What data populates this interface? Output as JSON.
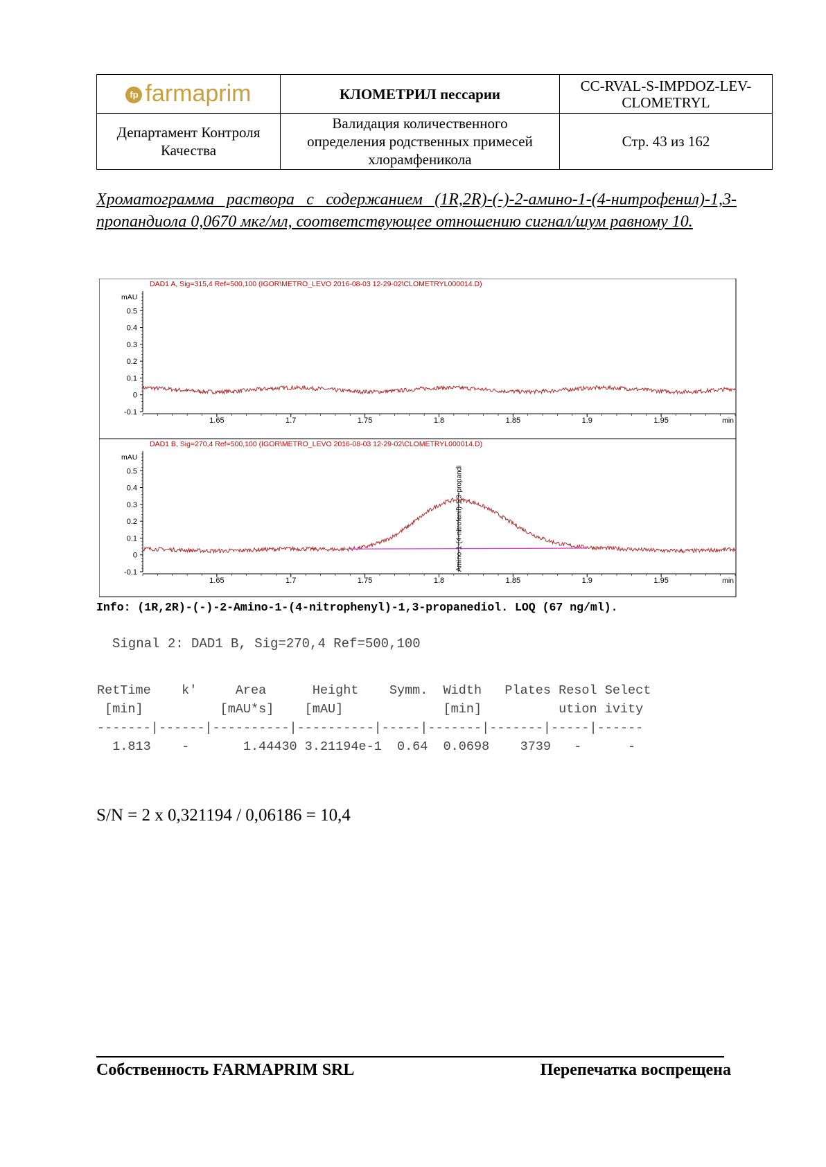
{
  "header": {
    "logo_text": "farmaprim",
    "logo_mark": "fp",
    "product": "КЛОМЕТРИЛ пессарии",
    "doc_code_1": "CC-RVAL-S-IMPDOZ-LEV-",
    "doc_code_2": "CLOMETRYL",
    "department_1": "Департамент Контроля",
    "department_2": "Качества",
    "validation_1": "Валидация количественного",
    "validation_2": "определения родственных примесей",
    "validation_3": "хлорамфеникола",
    "page": "Стр. 43 из 162"
  },
  "caption": "Хроматограмма раствора с содержанием (1R,2R)-(-)-2-амино-1-(4-нитрофенил)-1,3-пропандиола 0,0670 мкг/мл, соответствующее отношению сигнал/шум равному 10.",
  "chart_data": [
    {
      "type": "line",
      "title": "DAD1 A, Sig=315,4 Ref=500,100 (IGOR\\METRO_LEVO 2016-08-03 12-29-02\\CLOMETRYL000014.D)",
      "ylabel": "mAU",
      "xlabel": "min",
      "xlim": [
        1.6,
        2.0
      ],
      "ylim": [
        -0.1,
        0.6
      ],
      "x_ticks": [
        "1.65",
        "1.7",
        "1.75",
        "1.8",
        "1.85",
        "1.9",
        "1.95"
      ],
      "y_ticks": [
        "0.5",
        "0.4",
        "0.3",
        "0.2",
        "0.1",
        "0",
        "-0.1"
      ],
      "series": [
        {
          "baseline": 0.03,
          "noise": 0.012,
          "peak": null
        }
      ]
    },
    {
      "type": "line",
      "title": "DAD1 B, Sig=270,4 Ref=500,100 (IGOR\\METRO_LEVO 2016-08-03 12-29-02\\CLOMETRYL000014.D)",
      "ylabel": "mAU",
      "xlabel": "min",
      "xlim": [
        1.6,
        2.0
      ],
      "ylim": [
        -0.1,
        0.6
      ],
      "x_ticks": [
        "1.65",
        "1.7",
        "1.75",
        "1.8",
        "1.85",
        "1.9",
        "1.95"
      ],
      "y_ticks": [
        "0.5",
        "0.4",
        "0.3",
        "0.2",
        "0.1",
        "0",
        "-0.1"
      ],
      "peak_label": "Amino-1-(4-nitrofenil)-1,3-propandi",
      "series": [
        {
          "baseline": 0.03,
          "noise": 0.012,
          "peak": {
            "rt": 1.813,
            "height": 0.321194,
            "start": 1.74,
            "end": 1.9
          }
        }
      ]
    }
  ],
  "info": "Info: (1R,2R)-(-)-2-Amino-1-(4-nitrophenyl)-1,3-propanediol. LOQ (67 ng/ml).",
  "signal": "Signal 2: DAD1 B, Sig=270,4 Ref=500,100",
  "peak_table": {
    "header_1": "RetTime    k'     Area      Height    Symm.  Width   Plates Resol Select",
    "header_2": " [min]          [mAU*s]    [mAU]             [min]          ution ivity",
    "separator": "-------|------|----------|----------|-----|-------|-------|-----|------",
    "row_1": "  1.813    -       1.44430 3.21194e-1  0.64  0.0698    3739   -      -"
  },
  "sn_formula": "S/N = 2 x 0,321194 / 0,06186 = 10,4",
  "footer": {
    "left": "Собственность FARMAPRIM SRL",
    "right": "Перепечатка воспрещена"
  },
  "colors": {
    "trace": "#b03030",
    "baseline": "#e040e0",
    "title": "#cc0000",
    "logo": "#c8a040"
  }
}
